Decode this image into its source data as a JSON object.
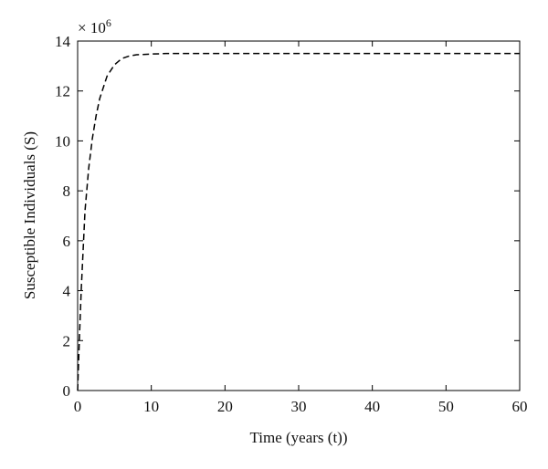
{
  "chart_data": {
    "type": "line",
    "x_label": "Time (years (t))",
    "y_label": "Susceptible Individuals (S)",
    "y_multiplier": "× 10",
    "y_multiplier_exponent": "6",
    "x": [
      0,
      0.25,
      0.5,
      1,
      1.5,
      2,
      2.5,
      3,
      4,
      5,
      6,
      7,
      8,
      10,
      12,
      20,
      30,
      40,
      50,
      60
    ],
    "series": [
      {
        "color": "#000000",
        "dash": true,
        "values": [
          0,
          2.2,
          4.1,
          7.2,
          8.9,
          10.1,
          11.0,
          11.7,
          12.6,
          13.05,
          13.3,
          13.4,
          13.45,
          13.48,
          13.5,
          13.5,
          13.5,
          13.5,
          13.5,
          13.5
        ]
      }
    ],
    "xlim": [
      0,
      60
    ],
    "ylim": [
      0,
      14
    ],
    "xticks": [
      0,
      10,
      20,
      30,
      40,
      50,
      60
    ],
    "yticks": [
      0,
      2,
      4,
      6,
      8,
      10,
      12,
      14
    ]
  }
}
